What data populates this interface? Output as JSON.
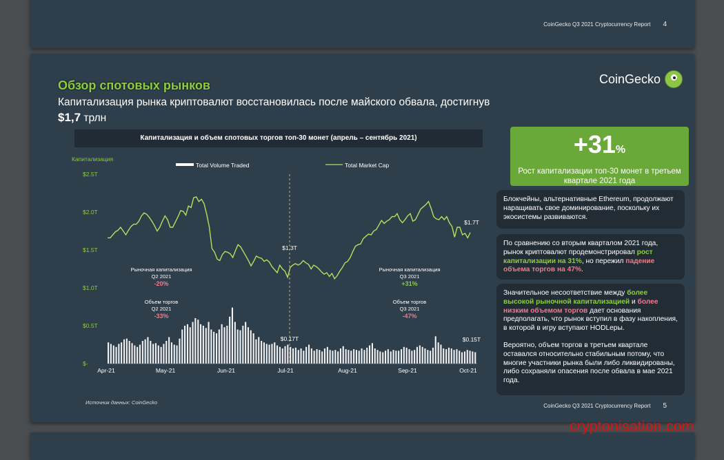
{
  "page_top": {
    "footer_text": "CoinGecko Q3 2021 Cryptocurrency Report",
    "page_num": "4"
  },
  "page": {
    "title": "Обзор спотовых рынков",
    "subtitle_main": "Капитализация рынка криптовалют восстановилась после майского обвала, достигнув ",
    "subtitle_value": "$1,7",
    "subtitle_unit": " трлн",
    "logo_text": "CoinGecko",
    "chart_box_title": "Капитализация и объем спотовых торгов топ-30 монет (апрель – сентябрь 2021)",
    "big_stat": {
      "value": "+31",
      "unit": "%",
      "caption": "Рост капитализации топ-30 монет в третьем квартале 2021 года"
    },
    "info1": "Блокчейны, альтернативные Ethereum, продолжают наращивать свое доминирование, поскольку их экосистемы развиваются.",
    "info2": {
      "t1": "По сравнению со вторым кварталом 2021 года, рынок криптовалют продемонстрировал ",
      "g1": "рост капитализации на 31%",
      "t2": ", но пережил ",
      "p1": "падение объема торгов на 47%",
      "t3": "."
    },
    "info3": {
      "t1": "Значительное несоответствие между ",
      "g1": "более высокой рыночной капитализацией",
      "t2": " и ",
      "p1": "более низким объемом торгов",
      "t3": " дает основания предполагать, что рынок вступил в фазу накопления, в которой в игру вступают HODLеры.",
      "para2": "Вероятно, объем торгов в третьем квартале оставался относительно стабильным потому, что многие участники рынка были либо ликвидированы, либо сохраняли опасения после обвала в мае 2021 года."
    },
    "source": "Источник данных: CoinGecko",
    "footer_text": "CoinGecko Q3 2021 Cryptocurrency Report",
    "page_num": "5"
  },
  "watermark": "cryptonisation.com",
  "colors": {
    "accent": "#8ccf3e",
    "pink": "#f07a8a",
    "bg": "#2f3e4b"
  },
  "chart_data": {
    "type": "line",
    "ylabel": "Капитализация",
    "legend": [
      "Total Volume Traded",
      "Total Market Cap"
    ],
    "legend_position": "top",
    "y_ticks": [
      "$-",
      "$0.5T",
      "$1.0T",
      "$1.5T",
      "$2.0T",
      "$2.5T"
    ],
    "ylim": [
      0,
      2.5
    ],
    "x_ticks": [
      "Apr-21",
      "May-21",
      "Jun-21",
      "Jul-21",
      "Aug-21",
      "Sep-21",
      "Oct-21"
    ],
    "market_cap": [
      1.66,
      1.66,
      1.7,
      1.74,
      1.76,
      1.8,
      1.75,
      1.7,
      1.76,
      1.81,
      1.84,
      1.84,
      1.88,
      1.95,
      1.99,
      1.97,
      1.93,
      1.88,
      1.82,
      1.75,
      1.8,
      1.88,
      1.95,
      1.9,
      1.8,
      1.8,
      1.87,
      1.94,
      2.02,
      2.01,
      1.96,
      2.08,
      2.06,
      2.19,
      2.2,
      2.14,
      2.17,
      2.11,
      1.97,
      1.8,
      1.52,
      1.47,
      1.38,
      1.36,
      1.44,
      1.48,
      1.47,
      1.45,
      1.4,
      1.49,
      1.57,
      1.54,
      1.48,
      1.42,
      1.36,
      1.29,
      1.35,
      1.42,
      1.4,
      1.39,
      1.35,
      1.37,
      1.34,
      1.28,
      1.24,
      1.2,
      1.3,
      1.25,
      1.22,
      1.14,
      1.27,
      1.3,
      1.32,
      1.3,
      1.32,
      1.36,
      1.33,
      1.31,
      1.25,
      1.3,
      1.28,
      1.25,
      1.21,
      1.18,
      1.2,
      1.15,
      1.19,
      1.12,
      1.16,
      1.22,
      1.27,
      1.33,
      1.35,
      1.4,
      1.48,
      1.55,
      1.57,
      1.58,
      1.65,
      1.68,
      1.71,
      1.7,
      1.75,
      1.77,
      1.83,
      1.89,
      1.85,
      1.88,
      1.9,
      1.94,
      1.94,
      1.98,
      1.9,
      1.86,
      1.9,
      1.95,
      1.98,
      1.88,
      1.9,
      1.97,
      2.04,
      2.07,
      2.1,
      2.14,
      2.05,
      1.94,
      1.91,
      1.9,
      1.94,
      1.9,
      1.94,
      1.86,
      1.81,
      1.67,
      1.8,
      1.8,
      1.7,
      1.72,
      1.66,
      1.73
    ],
    "volume": [
      0.28,
      0.26,
      0.24,
      0.22,
      0.26,
      0.28,
      0.32,
      0.33,
      0.3,
      0.27,
      0.24,
      0.22,
      0.25,
      0.3,
      0.32,
      0.35,
      0.3,
      0.26,
      0.27,
      0.24,
      0.22,
      0.26,
      0.3,
      0.35,
      0.28,
      0.25,
      0.24,
      0.33,
      0.45,
      0.5,
      0.52,
      0.48,
      0.55,
      0.6,
      0.58,
      0.52,
      0.5,
      0.47,
      0.55,
      0.45,
      0.42,
      0.4,
      0.45,
      0.52,
      0.48,
      0.5,
      0.62,
      0.74,
      0.55,
      0.45,
      0.44,
      0.5,
      0.55,
      0.48,
      0.44,
      0.4,
      0.32,
      0.35,
      0.3,
      0.28,
      0.26,
      0.25,
      0.26,
      0.28,
      0.24,
      0.22,
      0.2,
      0.23,
      0.25,
      0.22,
      0.2,
      0.21,
      0.18,
      0.2,
      0.17,
      0.22,
      0.25,
      0.2,
      0.17,
      0.19,
      0.18,
      0.16,
      0.2,
      0.22,
      0.18,
      0.17,
      0.18,
      0.16,
      0.2,
      0.23,
      0.19,
      0.18,
      0.17,
      0.19,
      0.18,
      0.17,
      0.2,
      0.18,
      0.21,
      0.24,
      0.27,
      0.2,
      0.18,
      0.16,
      0.15,
      0.17,
      0.19,
      0.16,
      0.18,
      0.17,
      0.17,
      0.19,
      0.22,
      0.21,
      0.19,
      0.17,
      0.18,
      0.22,
      0.24,
      0.22,
      0.2,
      0.18,
      0.17,
      0.21,
      0.36,
      0.28,
      0.25,
      0.2,
      0.19,
      0.21,
      0.2,
      0.18,
      0.19,
      0.17,
      0.15,
      0.16,
      0.18,
      0.17,
      0.16,
      0.15
    ],
    "annotations": {
      "q3_marker": "$1.3T",
      "q3_vol_marker": "$0.17T",
      "end_cap": "$1.7T",
      "end_vol": "$0.15T",
      "q2_cap_label": "Рыночная капитализация",
      "q2_label": "Q2 2021",
      "q2_cap_change": "-20%",
      "q2_vol_label": "Объем торгов",
      "q2_vol_change": "-33%",
      "q3_cap_label": "Рыночная капитализация",
      "q3_label": "Q3 2021",
      "q3_cap_change": "+31%",
      "q3_vol_label": "Объем торгов",
      "q3_vol_change": "-47%"
    }
  }
}
